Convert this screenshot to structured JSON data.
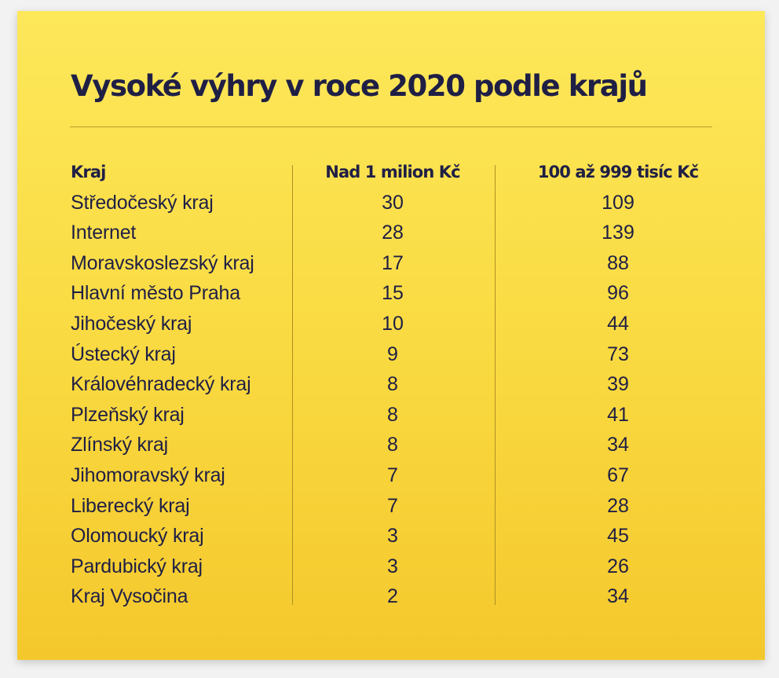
{
  "chart_data": {
    "type": "table",
    "title": "Vysoké výhry v roce 2020 podle krajů",
    "columns": [
      "Kraj",
      "Nad 1 milion Kč",
      "100 až 999 tisíc Kč"
    ],
    "rows": [
      [
        "Středočeský kraj",
        30,
        109
      ],
      [
        "Internet",
        28,
        139
      ],
      [
        "Moravskoslezský kraj",
        17,
        88
      ],
      [
        "Hlavní město Praha",
        15,
        96
      ],
      [
        "Jihočeský kraj",
        10,
        44
      ],
      [
        "Ústecký kraj",
        9,
        73
      ],
      [
        "Královéhradecký kraj",
        8,
        39
      ],
      [
        "Plzeňský kraj",
        8,
        41
      ],
      [
        "Zlínský kraj",
        8,
        34
      ],
      [
        "Jihomoravský kraj",
        7,
        67
      ],
      [
        "Liberecký kraj",
        7,
        28
      ],
      [
        "Olomoucký kraj",
        3,
        45
      ],
      [
        "Pardubický kraj",
        3,
        26
      ],
      [
        "Kraj Vysočina",
        2,
        34
      ]
    ]
  },
  "colors": {
    "card_background": "#f9d940",
    "text": "#1f1f45",
    "rule": "#b99b2a"
  }
}
